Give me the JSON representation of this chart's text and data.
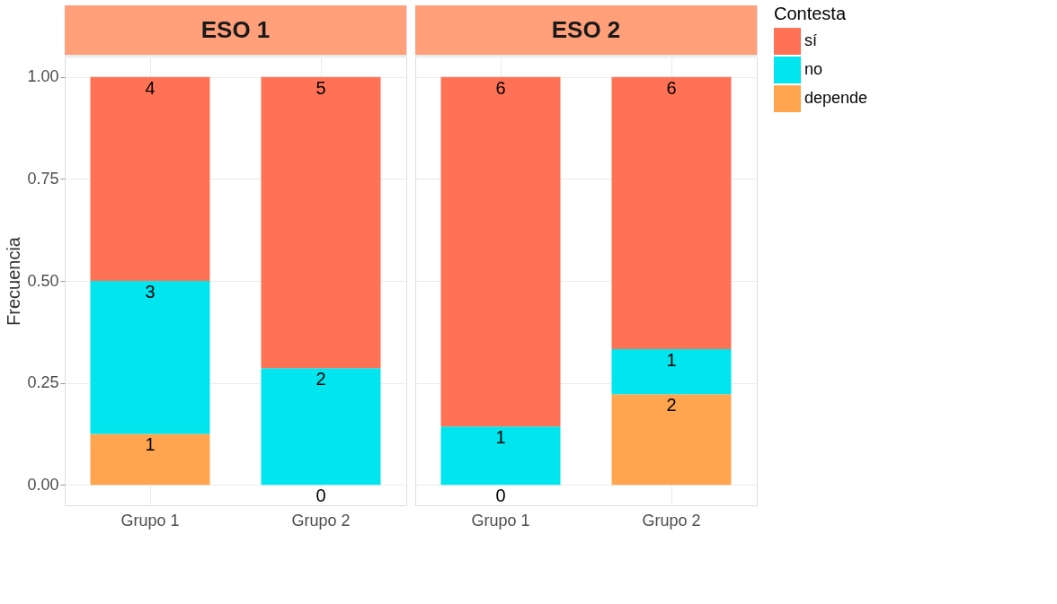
{
  "chart_data": [
    {
      "type": "bar",
      "title": "ESO 1",
      "ylabel": "Frecuencia",
      "categories": [
        "Grupo 1",
        "Grupo 2"
      ],
      "stacked": true,
      "ylim": [
        -0.05,
        1.05
      ],
      "yticks": [
        {
          "value": 0,
          "label": "0.00"
        },
        {
          "value": 0.25,
          "label": "0.25"
        },
        {
          "value": 0.5,
          "label": "0.50"
        },
        {
          "value": 0.75,
          "label": "0.75"
        },
        {
          "value": 1,
          "label": "1.00"
        }
      ],
      "grid": true,
      "legend": "right",
      "series": [
        {
          "name": "depende",
          "color": "#ffa54f",
          "values": [
            0.125,
            0
          ]
        },
        {
          "name": "no",
          "color": "#00e5ee",
          "values": [
            0.375,
            0.286
          ]
        },
        {
          "name": "sí",
          "color": "#ff7256",
          "values": [
            0.5,
            0.714
          ]
        }
      ],
      "annotations": [
        {
          "text": "1",
          "x": "Grupo 1",
          "y": 0.125
        },
        {
          "text": "3",
          "x": "Grupo 1",
          "y": 0.5
        },
        {
          "text": "4",
          "x": "Grupo 1",
          "y": 1
        },
        {
          "text": "0",
          "x": "Grupo 2",
          "y": 0
        },
        {
          "text": "2",
          "x": "Grupo 2",
          "y": 0.286
        },
        {
          "text": "5",
          "x": "Grupo 2",
          "y": 1
        }
      ]
    },
    {
      "type": "bar",
      "title": "ESO 2",
      "categories": [
        "Grupo 1",
        "Grupo 2"
      ],
      "stacked": true,
      "ylim": [
        -0.05,
        1.05
      ],
      "yticks": [
        0,
        0.25,
        0.5,
        0.75,
        1
      ],
      "grid": true,
      "tick_labels": "x",
      "legend": "right",
      "legend_title": "Contesta",
      "series": [
        {
          "name": "depende",
          "color": "#ffa54f",
          "values": [
            0,
            0.222
          ]
        },
        {
          "name": "no",
          "color": "#00e5ee",
          "values": [
            0.143,
            0.111
          ]
        },
        {
          "name": "sí",
          "color": "#ff7256",
          "values": [
            0.857,
            0.667
          ]
        }
      ],
      "annotations": [
        {
          "text": "0",
          "x": "Grupo 1",
          "y": 0
        },
        {
          "text": "1",
          "x": "Grupo 1",
          "y": 0.143
        },
        {
          "text": "6",
          "x": "Grupo 1",
          "y": 1
        },
        {
          "text": "2",
          "x": "Grupo 2",
          "y": 0.222
        },
        {
          "text": "1",
          "x": "Grupo 2",
          "y": 0.333
        },
        {
          "text": "6",
          "x": "Grupo 2",
          "y": 1
        }
      ]
    }
  ]
}
